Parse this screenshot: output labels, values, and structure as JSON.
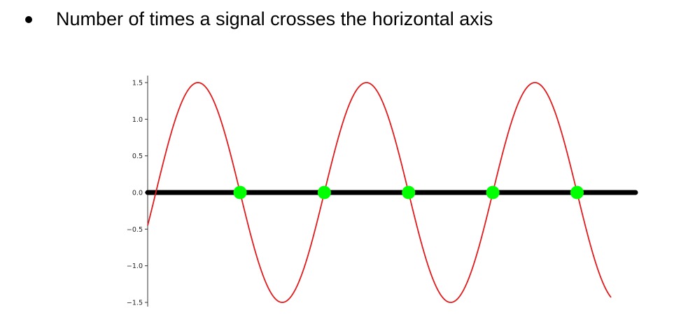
{
  "bullet": {
    "text": "Number of times a signal crosses the horizontal axis"
  },
  "chart_data": {
    "type": "line",
    "title": "",
    "xlabel": "",
    "ylabel": "",
    "ylim": [
      -1.5,
      1.5
    ],
    "yticks": [
      1.5,
      1.0,
      0.5,
      0.0,
      -0.5,
      -1.0,
      -1.5
    ],
    "ytick_labels": [
      "1.5",
      "1.0",
      "0.5",
      "0.0",
      "−0.5",
      "−1.0",
      "−1.5"
    ],
    "grid": false,
    "legend": "none",
    "series": [
      {
        "kind": "sine",
        "amplitude": 1.5,
        "cycles_visible": 2.75,
        "start_phase_value": -0.45,
        "color": "#e31a1c"
      }
    ],
    "baseline": {
      "y": 0.0,
      "color": "#000000"
    },
    "zero_crossings": {
      "count": 6,
      "color": "#00ff00"
    }
  }
}
